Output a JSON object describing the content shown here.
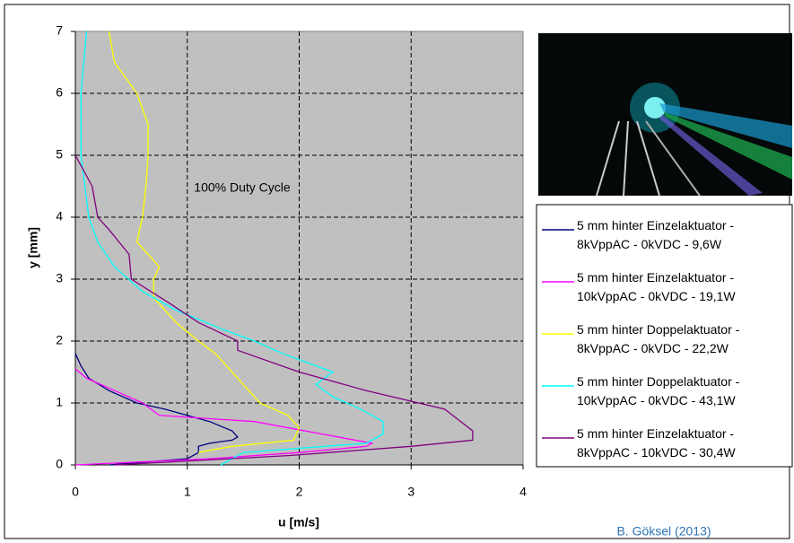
{
  "chart_data": {
    "type": "line",
    "xlabel": "u [m/s]",
    "ylabel": "y [mm]",
    "annotation": "100% Duty Cycle",
    "credit": "B. Göksel (2013)",
    "xlim": [
      0,
      4
    ],
    "xticks": [
      0,
      1,
      2,
      3,
      4
    ],
    "ylim": [
      0,
      7
    ],
    "yticks": [
      0,
      1,
      2,
      3,
      4,
      5,
      6,
      7
    ],
    "grid": true,
    "legend": "right",
    "series": [
      {
        "name": "5 mm hinter Einzelaktuator - 8kVppAC - 0kVDC - 9,6W",
        "color": "#000080",
        "x": [
          0.3,
          1.0,
          1.1,
          1.1,
          1.2,
          1.4,
          1.45,
          1.4,
          1.2,
          0.8,
          0.55,
          0.3,
          0.12,
          0.05,
          0.0
        ],
        "values": [
          0,
          0.1,
          0.2,
          0.3,
          0.35,
          0.4,
          0.45,
          0.55,
          0.7,
          0.9,
          1.0,
          1.2,
          1.4,
          1.6,
          1.8
        ]
      },
      {
        "name": "5 mm hinter Einzelaktuator - 10kVppAC - 0kVDC - 19,1W",
        "color": "#ff00ff",
        "x": [
          0.0,
          1.2,
          2.0,
          2.6,
          2.65,
          2.2,
          1.6,
          0.75,
          0.6,
          0.35,
          0.1,
          0.0
        ],
        "values": [
          0,
          0.1,
          0.2,
          0.3,
          0.35,
          0.5,
          0.7,
          0.8,
          1.0,
          1.2,
          1.4,
          1.55
        ]
      },
      {
        "name": "5 mm hinter Doppelaktuator - 8kVppAC - 0kVDC - 22,2W",
        "color": "#ffff00",
        "x": [
          1.1,
          1.4,
          1.95,
          2.0,
          1.9,
          1.65,
          1.55,
          1.45,
          1.35,
          1.25,
          1.1,
          0.9,
          0.7,
          0.7,
          0.75,
          0.55,
          0.6,
          0.63,
          0.65,
          0.65,
          0.55,
          0.35,
          0.3
        ],
        "values": [
          0.2,
          0.3,
          0.4,
          0.6,
          0.8,
          1.0,
          1.2,
          1.4,
          1.6,
          1.8,
          2.0,
          2.3,
          2.7,
          3.0,
          3.2,
          3.6,
          4.0,
          4.5,
          5.0,
          5.5,
          6.0,
          6.5,
          7.0
        ]
      },
      {
        "name": "5 mm hinter Doppelaktuator - 10kVppAC - 0kVDC - 43,1W",
        "color": "#00ffff",
        "x": [
          1.3,
          1.5,
          2.6,
          2.75,
          2.75,
          2.55,
          2.3,
          2.15,
          2.3,
          1.85,
          1.6,
          1.3,
          0.9,
          0.6,
          0.35,
          0.2,
          0.12,
          0.05,
          0.05,
          0.1
        ],
        "values": [
          0,
          0.2,
          0.35,
          0.5,
          0.7,
          0.9,
          1.1,
          1.3,
          1.5,
          1.8,
          2.0,
          2.2,
          2.5,
          2.8,
          3.2,
          3.6,
          4.0,
          5.0,
          6.0,
          7.0
        ]
      },
      {
        "name": "5 mm hinter Einzelaktuator - 8kVppAC - 10kVDC - 30,4W",
        "color": "#800080",
        "x": [
          0.35,
          1.9,
          3.0,
          3.55,
          3.55,
          3.3,
          2.6,
          2.0,
          1.45,
          1.45,
          1.1,
          0.85,
          0.5,
          0.48,
          0.3,
          0.2,
          0.15,
          0.0
        ],
        "values": [
          0,
          0.15,
          0.3,
          0.4,
          0.55,
          0.9,
          1.2,
          1.5,
          1.85,
          2.0,
          2.3,
          2.6,
          3.0,
          3.4,
          3.8,
          4.0,
          4.5,
          5.0
        ]
      }
    ]
  }
}
